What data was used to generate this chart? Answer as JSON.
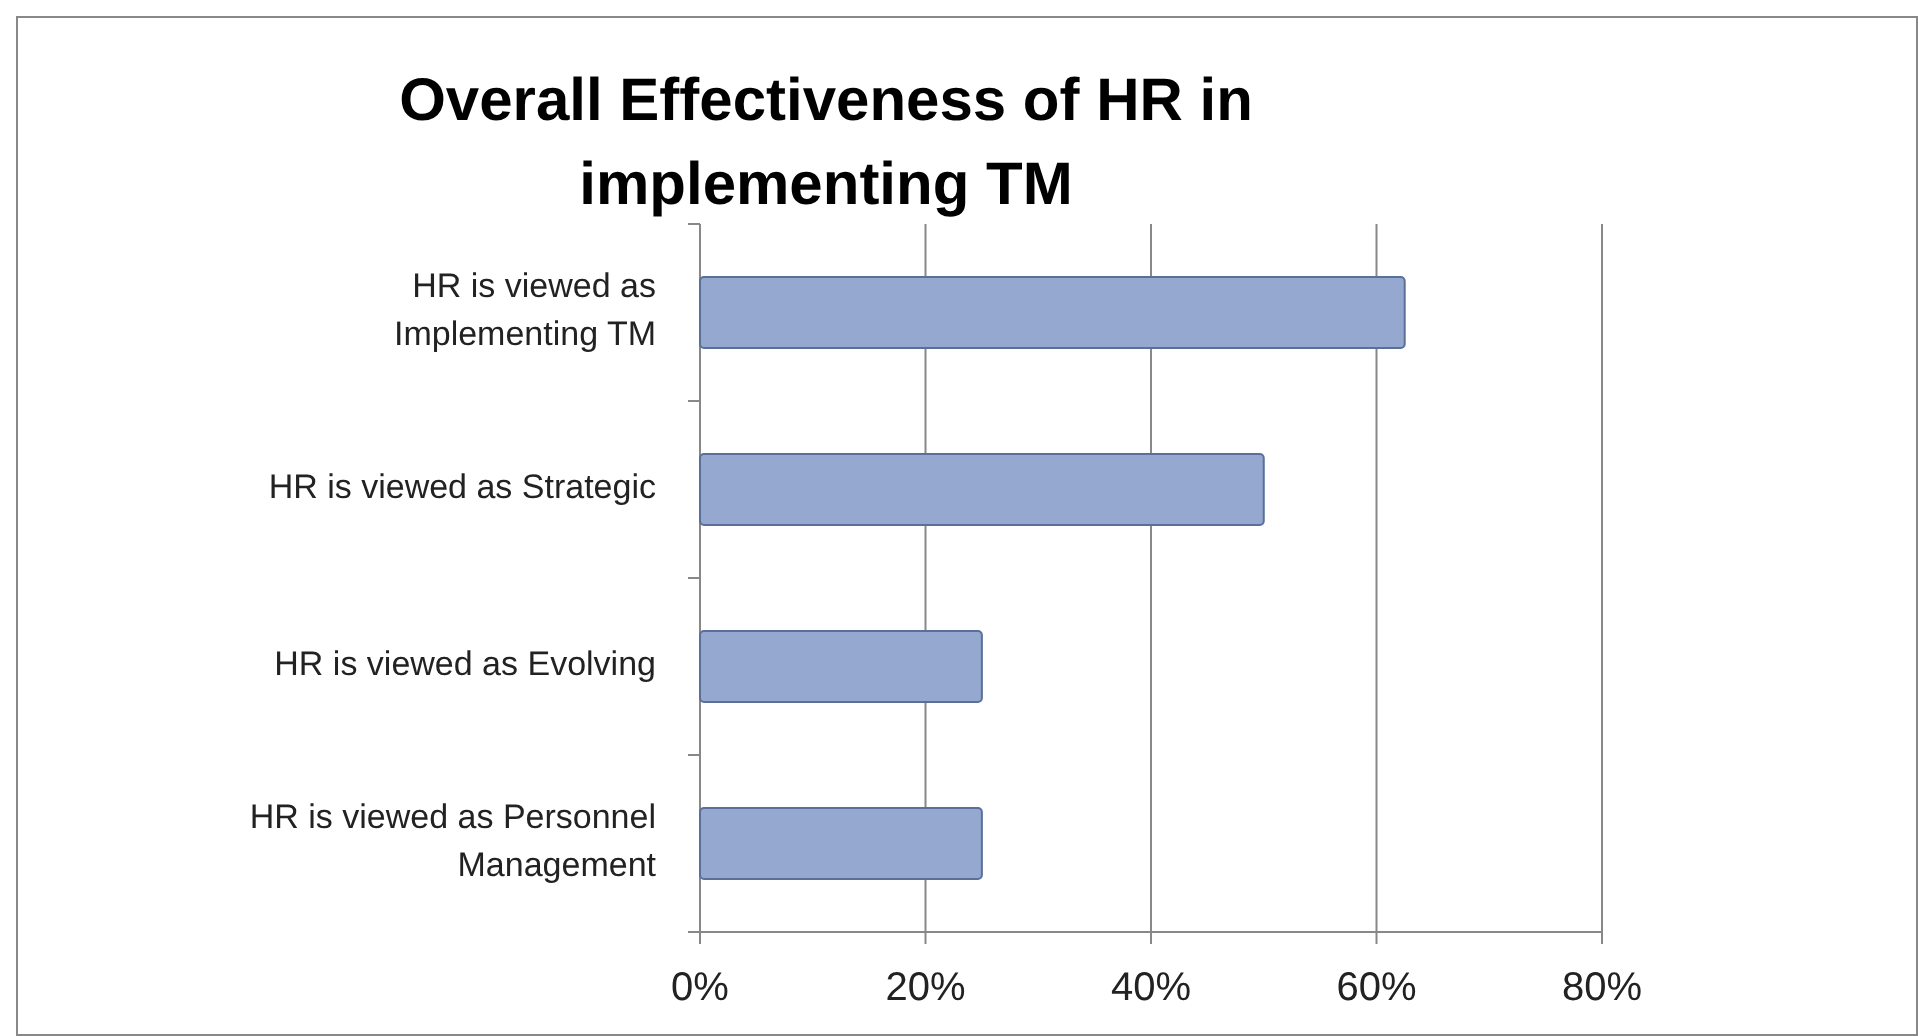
{
  "chart_data": {
    "type": "bar",
    "orientation": "horizontal",
    "title": "Overall Effectiveness of HR in implementing TM",
    "categories": [
      "HR is viewed as Implementing TM",
      "HR is viewed as Strategic",
      "HR is viewed as Evolving",
      "HR is viewed as Personnel Management"
    ],
    "values": [
      62.5,
      50,
      25,
      25
    ],
    "color": "#95a9d0",
    "xlim": [
      0,
      80
    ],
    "xticks": [
      {
        "value": 0,
        "label": "0%"
      },
      {
        "value": 20,
        "label": "20%"
      },
      {
        "value": 40,
        "label": "40%"
      },
      {
        "value": 60,
        "label": "60%"
      },
      {
        "value": 80,
        "label": "80%"
      }
    ],
    "grid": "x"
  }
}
